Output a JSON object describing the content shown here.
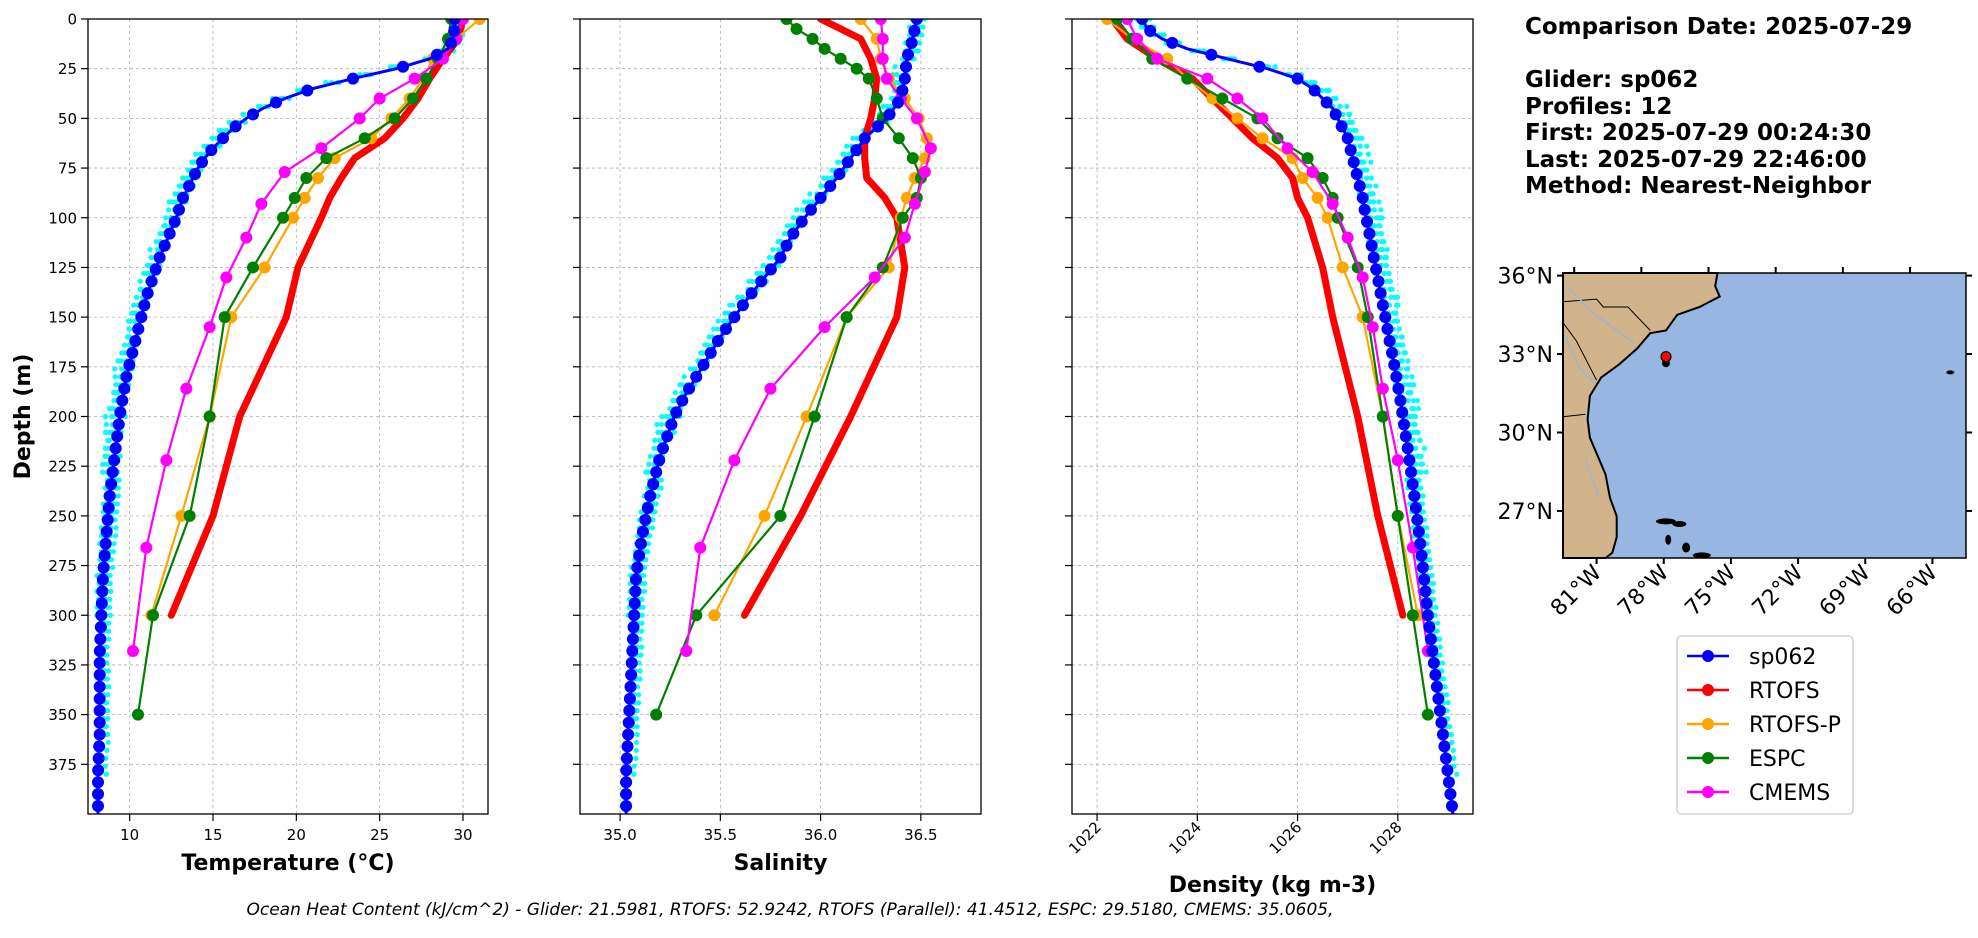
{
  "info": {
    "comparison_date": "Comparison Date: 2025-07-29",
    "glider": "Glider: sp062",
    "profiles": "Profiles: 12",
    "first": "First: 2025-07-29 00:24:30",
    "last": "Last: 2025-07-29 22:46:00",
    "method": "Method: Nearest-Neighbor"
  },
  "footer": "Ocean Heat Content (kJ/cm^2) - Glider: 21.5981,  RTOFS: 52.9242,  RTOFS (Parallel): 41.4512,  ESPC: 29.5180,  CMEMS: 35.0605,",
  "colors": {
    "sp062": "#0000ff",
    "profiles": "#00ffff",
    "RTOFS": "#ff0000",
    "RTOFS-P": "#ffa500",
    "ESPC": "#008000",
    "CMEMS": "#ff00ff",
    "land": "#d2b48c",
    "ocean": "#97b6e1"
  },
  "legend": [
    "sp062",
    "RTOFS",
    "RTOFS-P",
    "ESPC",
    "CMEMS"
  ],
  "map": {
    "lat_labels": [
      "36°N",
      "33°N",
      "30°N",
      "27°N"
    ],
    "lon_labels": [
      "81°W",
      "78°W",
      "75°W",
      "72°W",
      "69°W",
      "66°W"
    ],
    "lon_range": [
      -82.5,
      -64.5
    ],
    "lat_range": [
      25.2,
      36.1
    ],
    "glider_position": {
      "lon": -77.9,
      "lat": 32.9
    }
  },
  "chart_data": [
    {
      "type": "line",
      "xlabel": "Temperature (°C)",
      "ylabel": "Depth (m)",
      "xlim": [
        7.5,
        31.5
      ],
      "ylim": [
        400,
        0
      ],
      "xticks": [
        10,
        15,
        20,
        25,
        30
      ],
      "yticks": [
        0,
        25,
        50,
        75,
        100,
        125,
        150,
        175,
        200,
        225,
        250,
        275,
        300,
        325,
        350,
        375
      ],
      "grid": true,
      "series": [
        {
          "name": "sp062",
          "depth": [
            0,
            5,
            10,
            15,
            20,
            25,
            30,
            35,
            40,
            45,
            50,
            55,
            60,
            65,
            70,
            75,
            80,
            85,
            90,
            95,
            100,
            110,
            120,
            130,
            140,
            150,
            160,
            170,
            180,
            190,
            200,
            220,
            240,
            260,
            280,
            300,
            320,
            340,
            360,
            380,
            400
          ],
          "values": [
            29.5,
            29.5,
            29.4,
            29.1,
            28.0,
            26.0,
            23.4,
            21.0,
            19.3,
            18.0,
            17.0,
            16.2,
            15.6,
            15.0,
            14.5,
            14.1,
            13.8,
            13.5,
            13.2,
            13.0,
            12.8,
            12.3,
            11.8,
            11.4,
            11.0,
            10.7,
            10.4,
            10.1,
            9.8,
            9.6,
            9.4,
            9.1,
            8.8,
            8.6,
            8.4,
            8.3,
            8.2,
            8.2,
            8.2,
            8.1,
            8.1
          ]
        },
        {
          "name": "RTOFS",
          "depth": [
            0,
            10,
            20,
            30,
            40,
            50,
            60,
            70,
            80,
            90,
            100,
            125,
            150,
            200,
            250,
            300
          ],
          "values": [
            30.0,
            29.7,
            28.8,
            28.0,
            27.3,
            26.4,
            25.3,
            23.5,
            22.7,
            22.0,
            21.5,
            20.1,
            19.4,
            16.6,
            15.0,
            12.5
          ]
        },
        {
          "name": "RTOFS-P",
          "depth": [
            0,
            10,
            20,
            30,
            40,
            50,
            60,
            70,
            80,
            90,
            100,
            125,
            150,
            200,
            250,
            300
          ],
          "values": [
            31.0,
            29.6,
            28.2,
            27.6,
            26.8,
            25.7,
            24.5,
            22.3,
            21.3,
            20.5,
            19.8,
            18.1,
            16.1,
            14.8,
            13.1,
            11.3
          ]
        },
        {
          "name": "ESPC",
          "depth": [
            0,
            10,
            20,
            30,
            40,
            50,
            60,
            70,
            80,
            90,
            100,
            125,
            150,
            200,
            250,
            300,
            350
          ],
          "values": [
            29.3,
            29.1,
            28.5,
            27.8,
            27.0,
            25.9,
            24.1,
            21.8,
            20.6,
            19.9,
            19.2,
            17.4,
            15.7,
            14.8,
            13.6,
            11.4,
            10.5
          ]
        },
        {
          "name": "CMEMS",
          "depth": [
            0,
            10,
            20,
            30,
            40,
            50,
            65,
            77,
            93,
            110,
            130,
            155,
            186,
            222,
            266,
            318
          ],
          "values": [
            30.0,
            29.6,
            28.8,
            27.1,
            25.0,
            23.8,
            21.5,
            19.3,
            17.9,
            17.0,
            15.8,
            14.8,
            13.4,
            12.2,
            11.0,
            10.2
          ]
        }
      ]
    },
    {
      "type": "line",
      "xlabel": "Salinity",
      "xlim": [
        34.8,
        36.8
      ],
      "ylim": [
        400,
        0
      ],
      "xticks": [
        35.0,
        35.5,
        36.0,
        36.5
      ],
      "grid": true,
      "series": [
        {
          "name": "sp062",
          "depth": [
            0,
            10,
            20,
            30,
            40,
            50,
            60,
            70,
            80,
            90,
            100,
            110,
            120,
            130,
            140,
            150,
            160,
            170,
            180,
            190,
            200,
            220,
            240,
            260,
            280,
            300,
            320,
            340,
            360,
            380,
            400
          ],
          "values": [
            36.48,
            36.46,
            36.43,
            36.42,
            36.4,
            36.33,
            36.22,
            36.15,
            36.08,
            36.0,
            35.92,
            35.85,
            35.8,
            35.72,
            35.64,
            35.57,
            35.5,
            35.44,
            35.38,
            35.32,
            35.27,
            35.2,
            35.15,
            35.11,
            35.08,
            35.07,
            35.06,
            35.05,
            35.04,
            35.03,
            35.03
          ]
        },
        {
          "name": "RTOFS",
          "depth": [
            0,
            5,
            10,
            20,
            30,
            40,
            50,
            60,
            70,
            80,
            90,
            100,
            125,
            150,
            200,
            250,
            300
          ],
          "values": [
            36.0,
            36.1,
            36.2,
            36.25,
            36.28,
            36.27,
            36.25,
            36.22,
            36.22,
            36.23,
            36.32,
            36.38,
            36.42,
            36.38,
            36.15,
            35.9,
            35.62
          ]
        },
        {
          "name": "RTOFS-P",
          "depth": [
            0,
            10,
            20,
            30,
            40,
            50,
            60,
            70,
            80,
            90,
            100,
            125,
            150,
            200,
            250,
            300
          ],
          "values": [
            36.2,
            36.28,
            36.3,
            36.34,
            36.42,
            36.49,
            36.53,
            36.52,
            36.47,
            36.43,
            36.4,
            36.34,
            36.13,
            35.93,
            35.72,
            35.47
          ]
        },
        {
          "name": "ESPC",
          "depth": [
            0,
            5,
            10,
            15,
            20,
            25,
            30,
            40,
            50,
            60,
            70,
            80,
            90,
            100,
            125,
            150,
            200,
            250,
            300,
            350
          ],
          "values": [
            35.83,
            35.88,
            35.96,
            36.02,
            36.1,
            36.18,
            36.24,
            36.28,
            36.31,
            36.39,
            36.46,
            36.5,
            36.48,
            36.41,
            36.31,
            36.13,
            35.97,
            35.8,
            35.38,
            35.18
          ]
        },
        {
          "name": "CMEMS",
          "depth": [
            0,
            10,
            20,
            30,
            40,
            50,
            65,
            77,
            93,
            110,
            130,
            155,
            186,
            222,
            266,
            318
          ],
          "values": [
            36.3,
            36.31,
            36.31,
            36.33,
            36.4,
            36.48,
            36.55,
            36.52,
            36.47,
            36.42,
            36.27,
            36.02,
            35.75,
            35.57,
            35.4,
            35.33
          ]
        }
      ]
    },
    {
      "type": "line",
      "xlabel": "Density (kg m-3)",
      "xlim": [
        1021.5,
        1029.5
      ],
      "ylim": [
        400,
        0
      ],
      "xticks": [
        1022,
        1024,
        1026,
        1028
      ],
      "grid": true,
      "series": [
        {
          "name": "sp062",
          "depth": [
            0,
            5,
            10,
            15,
            20,
            25,
            30,
            35,
            40,
            45,
            50,
            55,
            60,
            65,
            70,
            75,
            80,
            85,
            90,
            95,
            100,
            110,
            120,
            130,
            140,
            150,
            160,
            170,
            180,
            190,
            200,
            220,
            240,
            260,
            280,
            300,
            320,
            340,
            360,
            380,
            400
          ],
          "values": [
            1022.9,
            1023.0,
            1023.3,
            1023.8,
            1024.6,
            1025.4,
            1026.0,
            1026.3,
            1026.5,
            1026.7,
            1026.8,
            1026.9,
            1027.0,
            1027.05,
            1027.1,
            1027.15,
            1027.2,
            1027.25,
            1027.3,
            1027.33,
            1027.37,
            1027.45,
            1027.52,
            1027.6,
            1027.67,
            1027.75,
            1027.82,
            1027.9,
            1027.97,
            1028.04,
            1028.1,
            1028.22,
            1028.33,
            1028.43,
            1028.52,
            1028.6,
            1028.7,
            1028.8,
            1028.9,
            1029.0,
            1029.1
          ]
        },
        {
          "name": "RTOFS",
          "depth": [
            0,
            10,
            20,
            30,
            40,
            50,
            60,
            70,
            80,
            90,
            100,
            125,
            150,
            200,
            250,
            300
          ],
          "values": [
            1022.3,
            1022.6,
            1023.2,
            1023.9,
            1024.3,
            1024.7,
            1025.1,
            1025.6,
            1025.9,
            1026.0,
            1026.2,
            1026.5,
            1026.7,
            1027.2,
            1027.6,
            1028.1
          ]
        },
        {
          "name": "RTOFS-P",
          "depth": [
            0,
            10,
            20,
            30,
            40,
            50,
            60,
            70,
            80,
            90,
            100,
            125,
            150,
            200,
            250,
            300
          ],
          "values": [
            1022.2,
            1022.7,
            1023.4,
            1023.8,
            1024.3,
            1024.8,
            1025.3,
            1025.9,
            1026.1,
            1026.4,
            1026.6,
            1026.9,
            1027.3,
            1027.7,
            1028.0,
            1028.4
          ]
        },
        {
          "name": "ESPC",
          "depth": [
            0,
            10,
            20,
            30,
            40,
            50,
            60,
            70,
            80,
            90,
            100,
            125,
            150,
            200,
            250,
            300,
            350
          ],
          "values": [
            1022.4,
            1022.7,
            1023.1,
            1023.8,
            1024.5,
            1025.2,
            1025.6,
            1026.2,
            1026.5,
            1026.7,
            1026.8,
            1027.2,
            1027.4,
            1027.7,
            1028.0,
            1028.3,
            1028.6
          ]
        },
        {
          "name": "CMEMS",
          "depth": [
            0,
            10,
            20,
            30,
            40,
            50,
            65,
            77,
            93,
            110,
            130,
            155,
            186,
            222,
            266,
            318
          ],
          "values": [
            1022.6,
            1022.8,
            1023.2,
            1024.2,
            1024.8,
            1025.3,
            1025.8,
            1026.3,
            1026.7,
            1027.0,
            1027.3,
            1027.5,
            1027.7,
            1028.0,
            1028.3,
            1028.6
          ]
        }
      ]
    }
  ]
}
